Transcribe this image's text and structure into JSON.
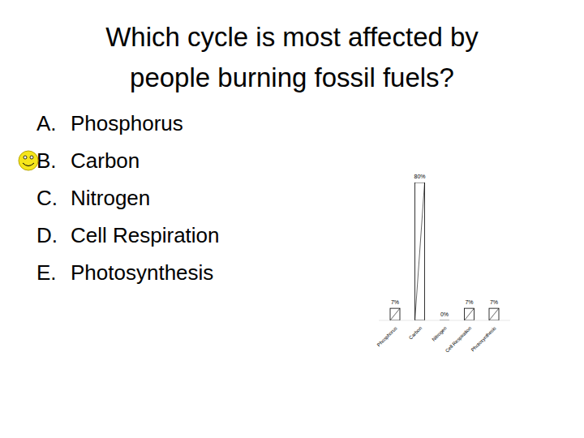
{
  "slide": {
    "title_lines": [
      "Which cycle is most affected by",
      "people burning fossil fuels?"
    ],
    "options": [
      {
        "letter": "A.",
        "text": "Phosphorus"
      },
      {
        "letter": "B.",
        "text": "Carbon"
      },
      {
        "letter": "C.",
        "text": "Nitrogen"
      },
      {
        "letter": "D.",
        "text": "Cell Respiration"
      },
      {
        "letter": "E.",
        "text": "Photosynthesis"
      }
    ],
    "correct": 1
  },
  "chart_data": {
    "type": "bar",
    "categories": [
      "Phosphorus",
      "Carbon",
      "Nitrogen",
      "Cell Respiration",
      "Photosynthesis"
    ],
    "values": [
      7,
      80,
      0,
      7,
      7
    ],
    "value_labels": [
      "7%",
      "80%",
      "0%",
      "7%",
      "7%"
    ],
    "data_labels": true,
    "tick_labels": "x",
    "ylim": [
      0,
      80
    ],
    "color": "#ffffff"
  }
}
